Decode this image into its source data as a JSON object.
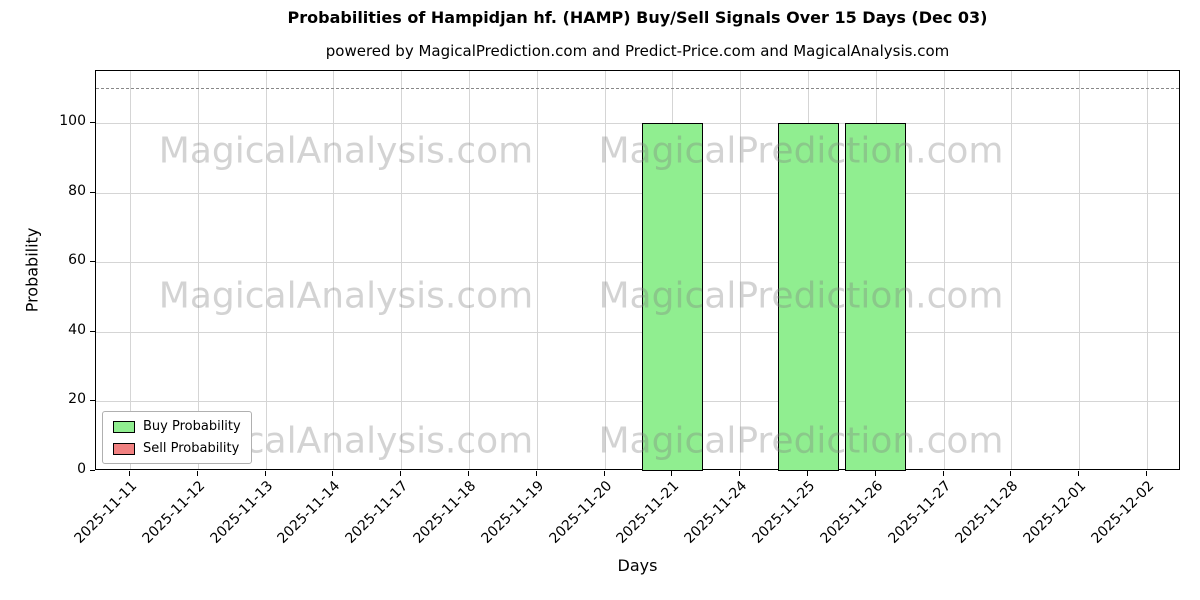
{
  "watermarks": {
    "left": "MagicalAnalysis.com",
    "right": "MagicalPrediction.com"
  },
  "chart_data": {
    "type": "bar",
    "title": "Probabilities of Hampidjan hf. (HAMP) Buy/Sell Signals Over 15 Days (Dec 03)",
    "subtitle": "powered by MagicalPrediction.com and Predict-Price.com and MagicalAnalysis.com",
    "xlabel": "Days",
    "ylabel": "Probability",
    "categories": [
      "2025-11-11",
      "2025-11-12",
      "2025-11-13",
      "2025-11-14",
      "2025-11-17",
      "2025-11-18",
      "2025-11-19",
      "2025-11-20",
      "2025-11-21",
      "2025-11-24",
      "2025-11-25",
      "2025-11-26",
      "2025-11-27",
      "2025-11-28",
      "2025-12-01",
      "2025-12-02"
    ],
    "series": [
      {
        "name": "Buy Probability",
        "color": "#90EE90",
        "values": [
          0,
          0,
          0,
          0,
          0,
          0,
          0,
          0,
          100,
          0,
          100,
          100,
          0,
          0,
          0,
          0
        ]
      },
      {
        "name": "Sell Probability",
        "color": "#F08080",
        "values": [
          0,
          0,
          0,
          0,
          0,
          0,
          0,
          0,
          0,
          0,
          0,
          0,
          0,
          0,
          0,
          0
        ]
      }
    ],
    "ylim": [
      0,
      115
    ],
    "yticks": [
      0,
      20,
      40,
      60,
      80,
      100
    ],
    "threshold_line": {
      "y": 110,
      "style": "dashed",
      "color": "#888888"
    },
    "grid": true,
    "legend_position": "lower left"
  }
}
